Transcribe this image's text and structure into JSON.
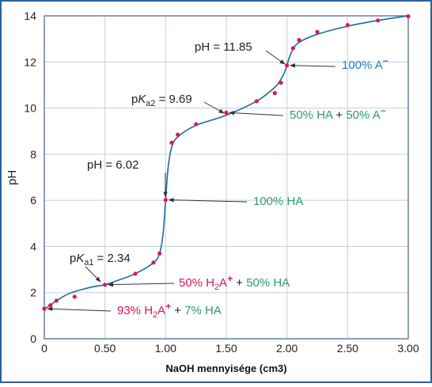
{
  "colors": {
    "curve": "#1a6aa8",
    "point": "#e0184c",
    "grid": "#c2cfdc",
    "border": "#7c93ad",
    "frame": "#2f5f9f",
    "text": "#222222",
    "magenta": "#d4145a",
    "green": "#2e9a73",
    "blue": "#1f7fc0",
    "arrow": "#333333"
  },
  "chart_data": {
    "type": "line",
    "xlabel": "NaOH mennyisége (cm3)",
    "ylabel": "pH",
    "xlim": [
      0,
      3.0
    ],
    "ylim": [
      0,
      14
    ],
    "xticks": [
      "0",
      "0.50",
      "1.00",
      "1.50",
      "2.00",
      "2.50",
      "3.00"
    ],
    "xtick_values": [
      0,
      0.5,
      1.0,
      1.5,
      2.0,
      2.5,
      3.0
    ],
    "yticks": [
      "0",
      "2",
      "4",
      "6",
      "8",
      "10",
      "12",
      "14"
    ],
    "ytick_values": [
      0,
      2,
      4,
      6,
      8,
      10,
      12,
      14
    ],
    "grid": true,
    "curve": {
      "x": [
        0,
        0.05,
        0.1,
        0.2,
        0.3,
        0.4,
        0.5,
        0.6,
        0.75,
        0.9,
        0.95,
        0.98,
        1.0,
        1.02,
        1.05,
        1.1,
        1.25,
        1.5,
        1.75,
        1.9,
        1.95,
        1.98,
        2.0,
        2.02,
        2.05,
        2.1,
        2.25,
        2.5,
        2.75,
        3.0
      ],
      "y": [
        1.3,
        1.45,
        1.65,
        1.95,
        2.12,
        2.25,
        2.34,
        2.52,
        2.82,
        3.3,
        3.7,
        4.6,
        6.02,
        7.4,
        8.3,
        8.75,
        9.25,
        9.69,
        10.3,
        10.9,
        11.25,
        11.55,
        11.85,
        12.2,
        12.55,
        12.85,
        13.2,
        13.55,
        13.8,
        14.0
      ]
    },
    "points": {
      "x": [
        0,
        0.05,
        0.1,
        0.25,
        0.5,
        0.75,
        0.9,
        0.95,
        1.0,
        1.05,
        1.1,
        1.25,
        1.5,
        1.75,
        1.9,
        1.95,
        2.0,
        2.05,
        2.1,
        2.25,
        2.5,
        2.75,
        3.0
      ],
      "y": [
        1.3,
        1.45,
        1.65,
        1.82,
        2.34,
        2.82,
        3.3,
        3.7,
        6.02,
        8.5,
        8.85,
        9.3,
        9.8,
        10.3,
        10.65,
        11.1,
        11.85,
        12.6,
        12.95,
        13.3,
        13.6,
        13.8,
        13.98
      ]
    },
    "annotations": [
      {
        "id": "pH-start",
        "segments": [
          {
            "text": "93% H"
          },
          {
            "text": "2",
            "sub": true
          },
          {
            "text": "A"
          },
          {
            "text": "+",
            "sup": true
          },
          {
            "text": " + "
          },
          {
            "text": "7% HA"
          }
        ],
        "colors": [
          "magenta",
          "magenta",
          "magenta",
          "magenta",
          "text",
          "green"
        ],
        "target": [
          0,
          1.3
        ]
      },
      {
        "id": "pka1-mix",
        "segments": [
          {
            "text": "50% H"
          },
          {
            "text": "2",
            "sub": true
          },
          {
            "text": "A"
          },
          {
            "text": "+",
            "sup": true
          },
          {
            "text": " + "
          },
          {
            "text": "50% HA"
          }
        ],
        "colors": [
          "magenta",
          "magenta",
          "magenta",
          "magenta",
          "text",
          "green"
        ],
        "target": [
          0.5,
          2.34
        ]
      },
      {
        "id": "pka1-label",
        "segments": [
          {
            "text": "p"
          },
          {
            "text": "K",
            "italic": true
          },
          {
            "text": "a1",
            "sub": true
          },
          {
            "text": " = 2.34"
          }
        ],
        "target": [
          0.5,
          2.34
        ]
      },
      {
        "id": "ph-eq1-label",
        "segments": [
          {
            "text": "pH = 6.02"
          }
        ]
      },
      {
        "id": "ha-100",
        "segments": [
          {
            "text": "100% HA"
          }
        ],
        "colors": [
          "green"
        ],
        "target": [
          1.0,
          6.02
        ]
      },
      {
        "id": "pka2-label",
        "segments": [
          {
            "text": "p"
          },
          {
            "text": "K",
            "italic": true
          },
          {
            "text": "a2",
            "sub": true
          },
          {
            "text": " = 9.69"
          }
        ],
        "target": [
          1.5,
          9.8
        ]
      },
      {
        "id": "pka2-mix",
        "segments": [
          {
            "text": "50% HA"
          },
          {
            "text": " + "
          },
          {
            "text": "50% A"
          },
          {
            "text": "−",
            "sup": true
          }
        ],
        "colors": [
          "green",
          "text",
          "green",
          "green"
        ],
        "target": [
          1.5,
          9.8
        ]
      },
      {
        "id": "ph-eq2-label",
        "segments": [
          {
            "text": "pH = 11.85"
          }
        ],
        "target": [
          2.0,
          11.85
        ]
      },
      {
        "id": "a-100",
        "segments": [
          {
            "text": "100% A"
          },
          {
            "text": "−",
            "sup": true
          }
        ],
        "colors": [
          "blue",
          "blue"
        ],
        "target": [
          2.0,
          11.85
        ]
      }
    ]
  }
}
